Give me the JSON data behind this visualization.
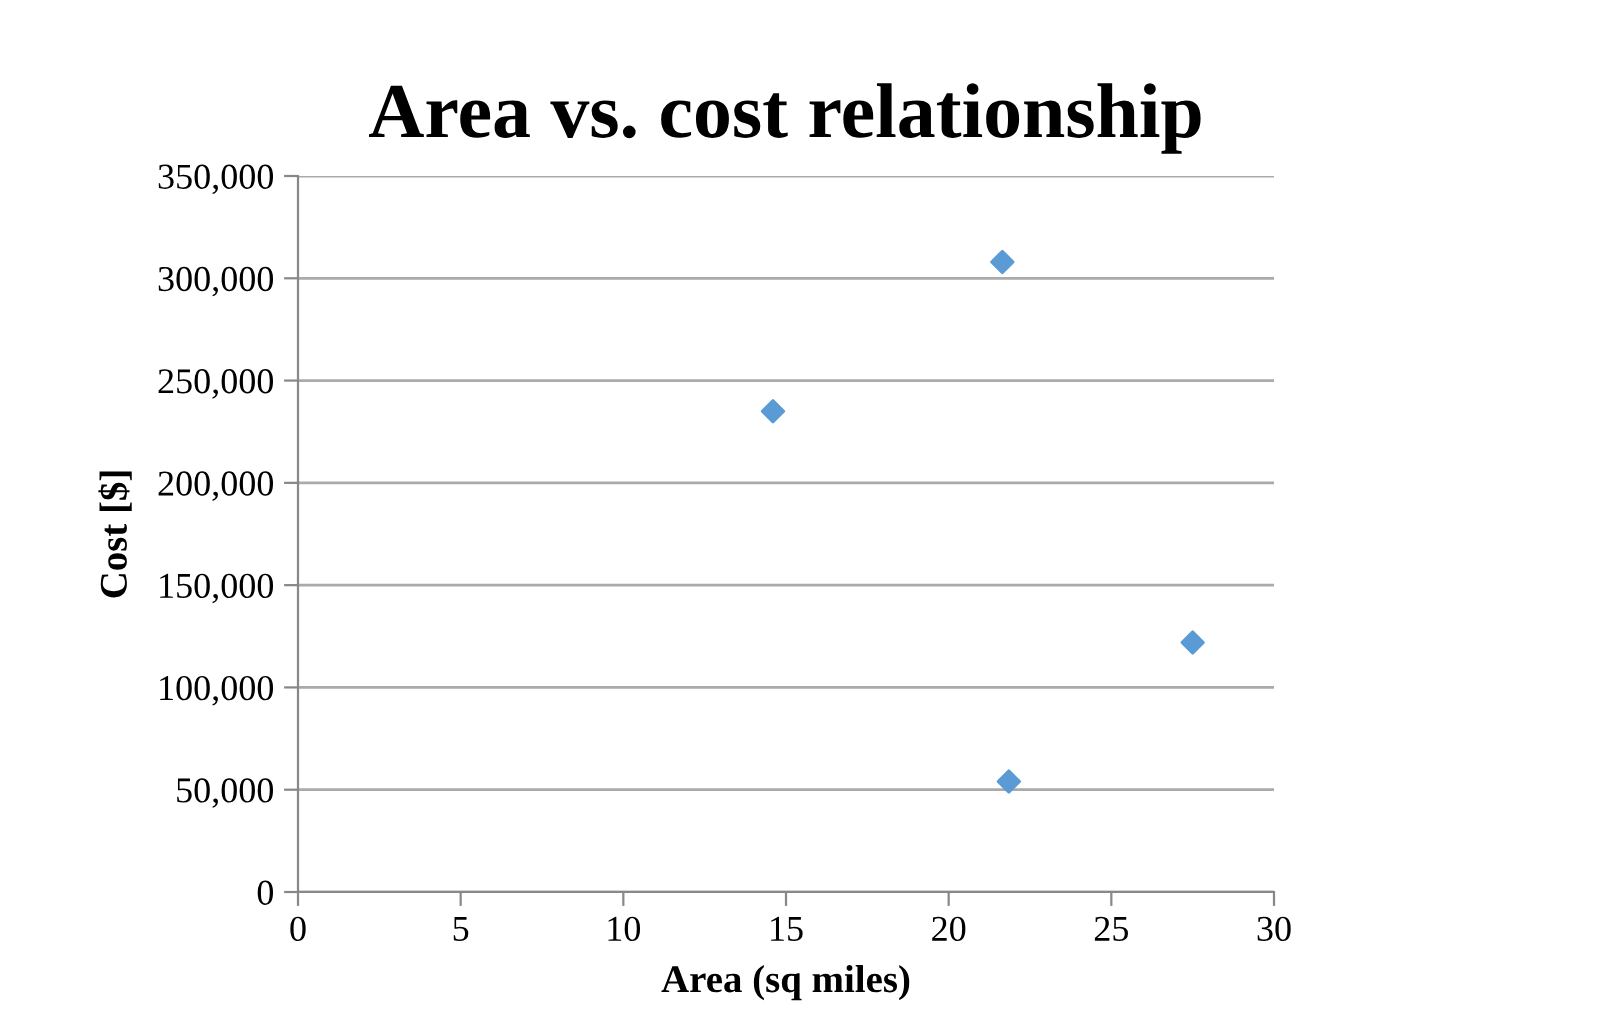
{
  "chart_data": {
    "type": "scatter",
    "title": "Area vs. cost relationship",
    "xlabel": "Area (sq miles)",
    "ylabel": "Cost [$]",
    "x": [
      14.6,
      21.65,
      21.85,
      27.5
    ],
    "series": [
      {
        "color": "#5b9bd5",
        "values": [
          235000,
          308000,
          54000,
          122000
        ]
      }
    ],
    "marker": "diamond",
    "xlim": [
      0,
      30
    ],
    "xticks": [
      0,
      5,
      10,
      15,
      20,
      25,
      30
    ],
    "ylim": [
      0,
      350000
    ],
    "yticks": [
      {
        "value": 0,
        "label": "0"
      },
      {
        "value": 50000,
        "label": "50,000"
      },
      {
        "value": 100000,
        "label": "100,000"
      },
      {
        "value": 150000,
        "label": "150,000"
      },
      {
        "value": 200000,
        "label": "200,000"
      },
      {
        "value": 250000,
        "label": "250,000"
      },
      {
        "value": 300000,
        "label": "300,000"
      },
      {
        "value": 350000,
        "label": "350,000"
      }
    ],
    "grid": "y"
  }
}
